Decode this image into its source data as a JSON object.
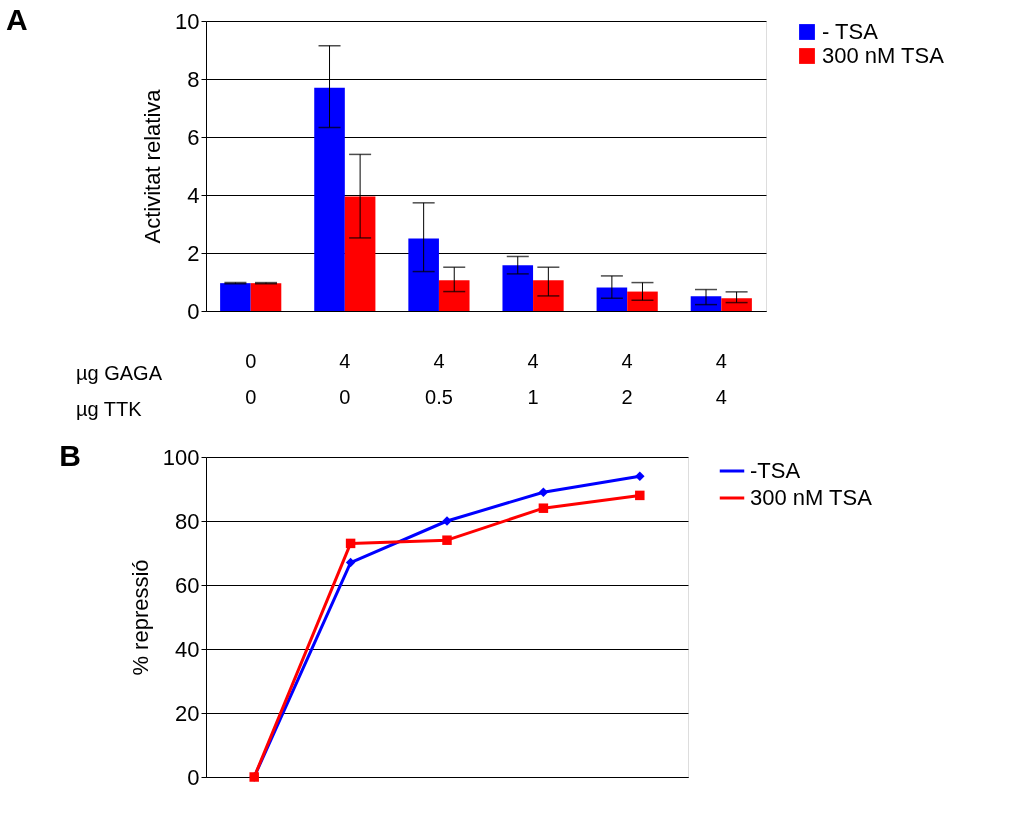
{
  "chart_data": [
    {
      "type": "bar",
      "title": "A",
      "ylabel": "Activitat relativa",
      "categories": [
        "0\n0",
        "4\n0",
        "4\n0.5",
        "4\n1",
        "4\n2",
        "4\n4"
      ],
      "annotations": [
        "µg GAGA",
        "µg TTK"
      ],
      "series": [
        {
          "name": "- TSA",
          "color": "#0000ff",
          "values": [
            0.96,
            7.7,
            2.5,
            1.58,
            0.81,
            0.51
          ],
          "errors": [
            0.02,
            [
              6.33,
              9.15
            ],
            [
              1.36,
              3.73
            ],
            [
              1.28,
              1.88
            ],
            [
              0.44,
              1.21
            ],
            [
              0.22,
              0.74
            ]
          ]
        },
        {
          "name": "300 nM TSA",
          "color": "#ff0000",
          "values": [
            0.96,
            3.95,
            1.06,
            1.06,
            0.67,
            0.44
          ],
          "errors": [
            0.02,
            [
              2.52,
              5.4
            ],
            [
              0.67,
              1.51
            ],
            [
              0.52,
              1.51
            ],
            [
              0.37,
              0.98
            ],
            [
              0.29,
              0.66
            ]
          ]
        }
      ],
      "ylim": [
        0,
        10
      ],
      "yticks": [
        0,
        2,
        4,
        6,
        8,
        10
      ],
      "grid": "y",
      "legend": "top right"
    },
    {
      "type": "line",
      "title": "B",
      "ylabel": "% repressió",
      "categories": [
        null,
        null,
        null,
        null,
        null
      ],
      "series": [
        {
          "name": "-TSA",
          "color": "#0000ff",
          "marker": "diamond",
          "values": [
            0,
            67,
            80,
            89,
            94
          ]
        },
        {
          "name": "300 nM TSA",
          "color": "#ff0000",
          "marker": "square",
          "values": [
            0,
            73,
            74,
            84,
            88
          ]
        }
      ],
      "ylim": [
        0,
        100
      ],
      "yticks": [
        0,
        20,
        40,
        60,
        80,
        100
      ],
      "grid": "y",
      "legend": "top right",
      "line_style": "solid"
    }
  ]
}
